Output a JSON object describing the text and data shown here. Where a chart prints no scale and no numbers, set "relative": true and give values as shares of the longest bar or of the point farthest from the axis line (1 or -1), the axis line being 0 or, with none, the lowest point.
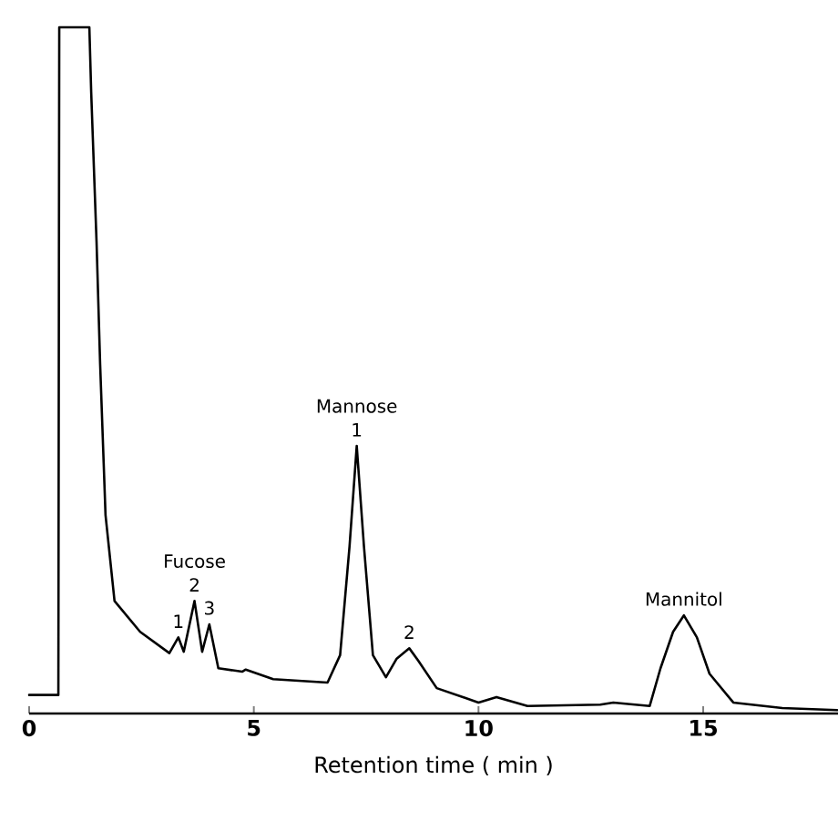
{
  "chart_data": {
    "type": "line",
    "relative": true,
    "xlabel": "Retention time ( min )",
    "xlim": [
      0,
      18
    ],
    "xticks": [
      0,
      5,
      10,
      15
    ],
    "color": "#000000",
    "x": [
      0,
      0.65,
      0.67,
      1.34,
      1.38,
      1.5,
      1.58,
      1.7,
      1.9,
      2.47,
      3.12,
      3.32,
      3.44,
      3.68,
      3.85,
      4.01,
      4.21,
      4.74,
      4.82,
      5.43,
      6.64,
      6.92,
      7.13,
      7.29,
      7.45,
      7.65,
      7.94,
      8.18,
      8.46,
      8.66,
      9.07,
      10.0,
      10.4,
      11.09,
      12.71,
      13.0,
      13.81,
      14.05,
      14.33,
      14.57,
      14.86,
      15.14,
      15.67,
      16.76,
      17.98
    ],
    "values": [
      0.027,
      0.027,
      1.0,
      1.0,
      0.907,
      0.687,
      0.509,
      0.289,
      0.164,
      0.119,
      0.088,
      0.111,
      0.09,
      0.164,
      0.09,
      0.13,
      0.066,
      0.061,
      0.064,
      0.05,
      0.045,
      0.085,
      0.244,
      0.39,
      0.244,
      0.085,
      0.053,
      0.08,
      0.095,
      0.077,
      0.037,
      0.016,
      0.024,
      0.011,
      0.013,
      0.016,
      0.011,
      0.066,
      0.119,
      0.143,
      0.111,
      0.058,
      0.016,
      0.008,
      0.005
    ],
    "annotations": [
      {
        "text": "Fucose",
        "x": 3.68,
        "y": 0.164
      },
      {
        "text": "1",
        "x": 3.32,
        "y": 0.111
      },
      {
        "text": "2",
        "x": 3.68,
        "y": 0.164
      },
      {
        "text": "3",
        "x": 4.01,
        "y": 0.13
      },
      {
        "text": "Mannose",
        "x": 7.29,
        "y": 0.39
      },
      {
        "text": "1",
        "x": 7.29,
        "y": 0.39
      },
      {
        "text": "2",
        "x": 8.46,
        "y": 0.095
      },
      {
        "text": "Mannitol",
        "x": 14.57,
        "y": 0.143
      }
    ]
  }
}
